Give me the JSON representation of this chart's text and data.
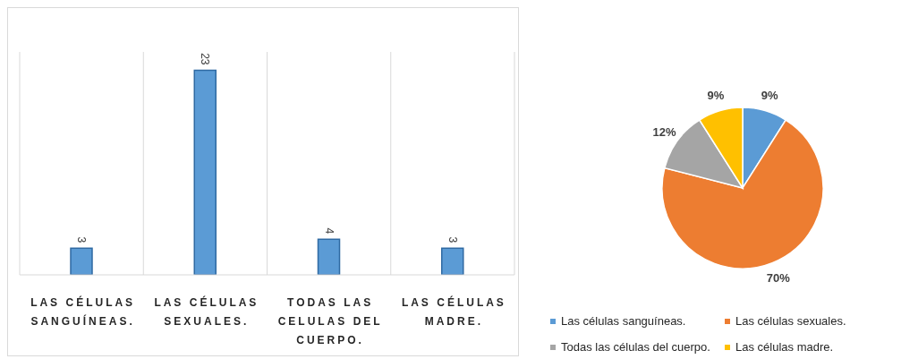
{
  "chart_data": [
    {
      "type": "bar",
      "categories": [
        "LAS CÉLULAS SANGUÍNEAS.",
        "LAS CÉLULAS SEXUALES.",
        "TODAS LAS CELULAS DEL CUERPO.",
        "LAS CÉLULAS MADRE."
      ],
      "values": [
        3,
        23,
        4,
        3
      ],
      "color": "#5b9bd5",
      "data_labels": true,
      "grid": "x",
      "tick_labels": "x"
    },
    {
      "type": "pie",
      "categories": [
        "Las células sanguíneas.",
        "Las células sexuales.",
        "Todas las células del cuerpo.",
        "Las células madre."
      ],
      "values": [
        9,
        70,
        12,
        9
      ],
      "colors": [
        "#5b9bd5",
        "#ed7d31",
        "#a5a5a5",
        "#ffc000"
      ],
      "value_labels": [
        "9%",
        "70%",
        "12%",
        "9%"
      ],
      "legend": "bottom"
    }
  ]
}
